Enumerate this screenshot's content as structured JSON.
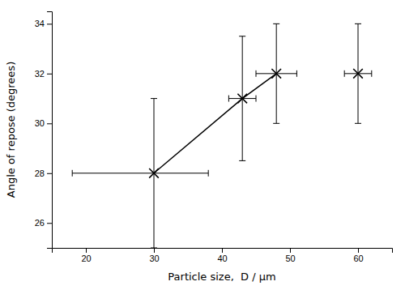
{
  "chart_data": {
    "type": "scatter",
    "x": [
      30,
      43,
      48,
      60
    ],
    "series": [
      {
        "type": "scatter",
        "marker": "x",
        "color": "#000000",
        "values": [
          28,
          31,
          32,
          32
        ],
        "xerr_left": [
          12,
          2,
          3,
          2
        ],
        "xerr_right": [
          8,
          2,
          3,
          2
        ],
        "yerr_down": [
          3,
          2.5,
          2,
          2
        ],
        "yerr_up": [
          3,
          2.5,
          2,
          2
        ]
      },
      {
        "type": "line",
        "line_style": "solid",
        "color": "#000000",
        "values": [
          28,
          31,
          32,
          null
        ]
      }
    ],
    "xlim": [
      15,
      65
    ],
    "ylim": [
      25.0,
      34.5
    ],
    "xticks": [
      20,
      30,
      40,
      50,
      60
    ],
    "yticks": [
      26,
      28,
      30,
      32,
      34
    ],
    "xlabel": "Particle size,  D / μm",
    "ylabel": "Angle of repose (degrees)",
    "grid": false
  }
}
